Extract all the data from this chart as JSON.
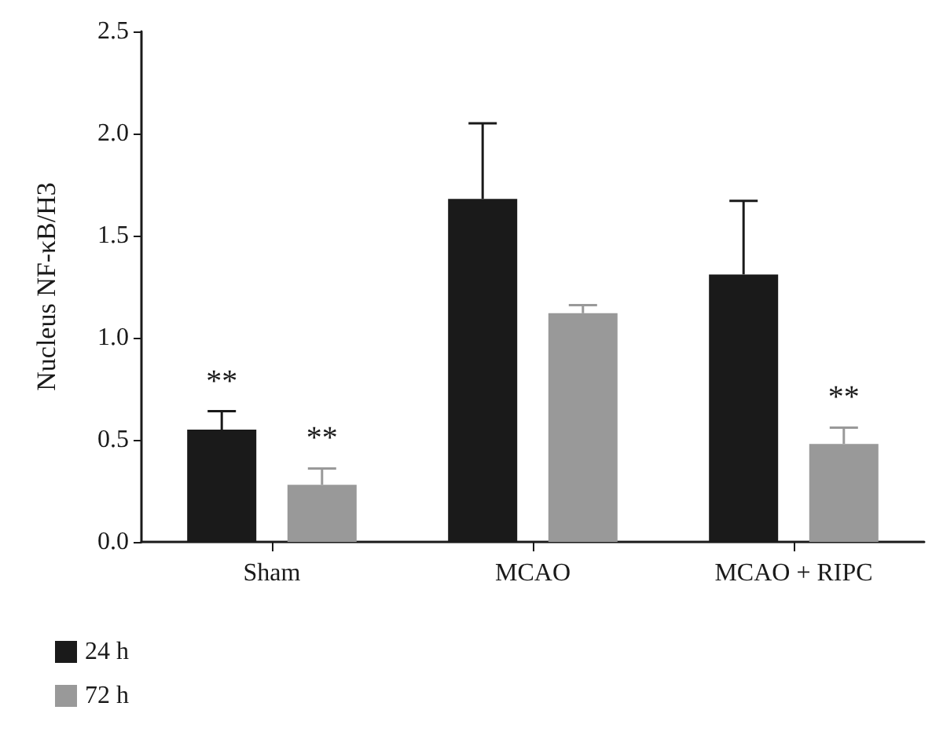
{
  "chart_data": {
    "type": "bar",
    "ylabel": "Nucleus NF-κB/H3",
    "categories": [
      "Sham",
      "MCAO",
      "MCAO + RIPC"
    ],
    "series": [
      {
        "name": "24 h",
        "color": "#1a1a1a",
        "values": [
          0.55,
          1.68,
          1.31
        ],
        "errors": [
          [
            0.55,
            0.64
          ],
          [
            1.68,
            2.05
          ],
          [
            1.31,
            1.67
          ]
        ]
      },
      {
        "name": "72 h",
        "color": "#999999",
        "values": [
          0.28,
          1.12,
          0.48
        ],
        "errors": [
          [
            0.28,
            0.36
          ],
          [
            1.12,
            1.16
          ],
          [
            0.48,
            0.56
          ]
        ]
      }
    ],
    "annotations": [
      "**",
      "**",
      "**"
    ],
    "ylim": [
      0,
      2.5
    ],
    "yticks": [
      {
        "value": 0,
        "label": "0.0"
      },
      0.5,
      {
        "value": 1,
        "label": "1.0"
      },
      1.5,
      {
        "value": 2,
        "label": "2.0"
      },
      2.5
    ],
    "grid": false,
    "legend": "bottom left"
  }
}
